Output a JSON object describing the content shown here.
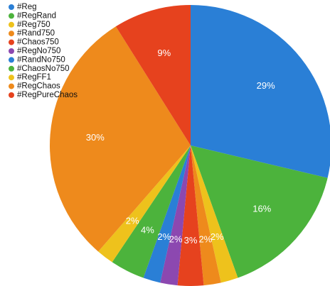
{
  "chart_data": {
    "type": "pie",
    "categories": [
      "#Reg",
      "#RegRand",
      "#Reg750",
      "#Rand750",
      "#Chaos750",
      "#RegNo750",
      "#RandNo750",
      "#ChaosNo750",
      "#RegFF1",
      "#RegChaos",
      "#RegPureChaos"
    ],
    "values": [
      29,
      16,
      2,
      2,
      3,
      2,
      2,
      4,
      2,
      30,
      9
    ],
    "value_labels": [
      "29%",
      "16%",
      "2%",
      "2%",
      "3%",
      "2%",
      "2%",
      "4%",
      "2%",
      "30%",
      "9%"
    ],
    "colors": [
      "#2a7fd6",
      "#4cb33c",
      "#eec21c",
      "#ee8a1c",
      "#e6421e",
      "#8c48b0",
      "#2a7fd6",
      "#4cb33c",
      "#eec21c",
      "#ee8a1c",
      "#e6421e"
    ],
    "legend": "top-left"
  }
}
